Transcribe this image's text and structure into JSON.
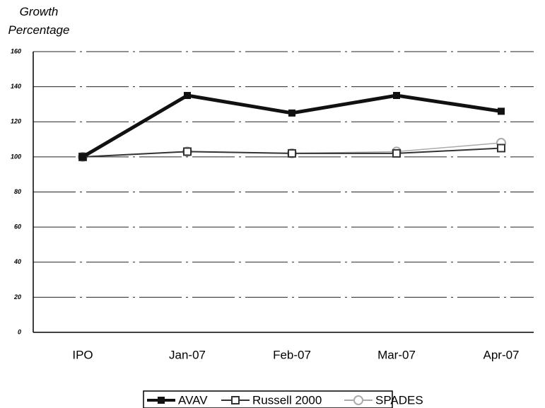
{
  "chart_data": {
    "type": "line",
    "y_label": "Growth Percentage",
    "categories": [
      "IPO",
      "Jan-07",
      "Feb-07",
      "Mar-07",
      "Apr-07"
    ],
    "series": [
      {
        "name": "AVAV",
        "color": "#111111",
        "values": [
          100,
          135,
          125,
          135,
          126
        ]
      },
      {
        "name": "Russell 2000",
        "color": "#333333",
        "values": [
          100,
          103,
          102,
          102,
          105
        ]
      },
      {
        "name": "SPADES",
        "color": "#aaaaaa",
        "values": [
          100,
          103,
          102,
          103,
          108
        ]
      }
    ],
    "ylim": [
      0,
      160
    ],
    "yticks": [
      0,
      20,
      40,
      60,
      80,
      100,
      120,
      140,
      160
    ],
    "grid": true
  }
}
